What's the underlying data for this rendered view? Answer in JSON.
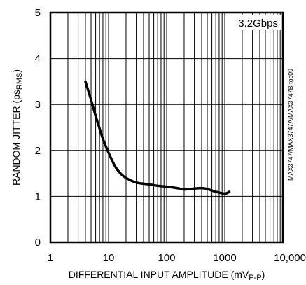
{
  "chart_data": {
    "type": "line",
    "x_scale": "log",
    "xlim": [
      1,
      10000
    ],
    "ylim": [
      0,
      5
    ],
    "grid": true,
    "x_ticks": [
      {
        "value": 1,
        "label": "1"
      },
      {
        "value": 10,
        "label": "10"
      },
      {
        "value": 100,
        "label": "100"
      },
      {
        "value": 1000,
        "label": "1000"
      },
      {
        "value": 10000,
        "label": "10,000"
      }
    ],
    "y_ticks": [
      {
        "value": 0,
        "label": "0"
      },
      {
        "value": 1,
        "label": "1"
      },
      {
        "value": 2,
        "label": "2"
      },
      {
        "value": 3,
        "label": "3"
      },
      {
        "value": 4,
        "label": "4"
      },
      {
        "value": 5,
        "label": "5"
      }
    ],
    "xlabel": {
      "main": "DIFFERENTIAL INPUT AMPLITUDE (mV",
      "sub": "P-P",
      "close": ")"
    },
    "ylabel": {
      "main": "RANDOM JITTER (ps",
      "sub": "RMS",
      "close": ")"
    },
    "annotation": "3.2Gbps",
    "side_label": "MAX3747/MAX3747A/MAX3747B toc09",
    "series": [
      {
        "x": [
          4,
          5,
          6,
          7,
          8,
          10,
          13,
          16,
          20,
          30,
          50,
          70,
          100,
          150,
          200,
          300,
          400,
          500,
          700,
          1000,
          1200
        ],
        "y": [
          3.5,
          3.1,
          2.75,
          2.48,
          2.25,
          1.95,
          1.65,
          1.5,
          1.4,
          1.3,
          1.26,
          1.23,
          1.21,
          1.18,
          1.15,
          1.17,
          1.18,
          1.16,
          1.1,
          1.06,
          1.1
        ]
      }
    ]
  }
}
